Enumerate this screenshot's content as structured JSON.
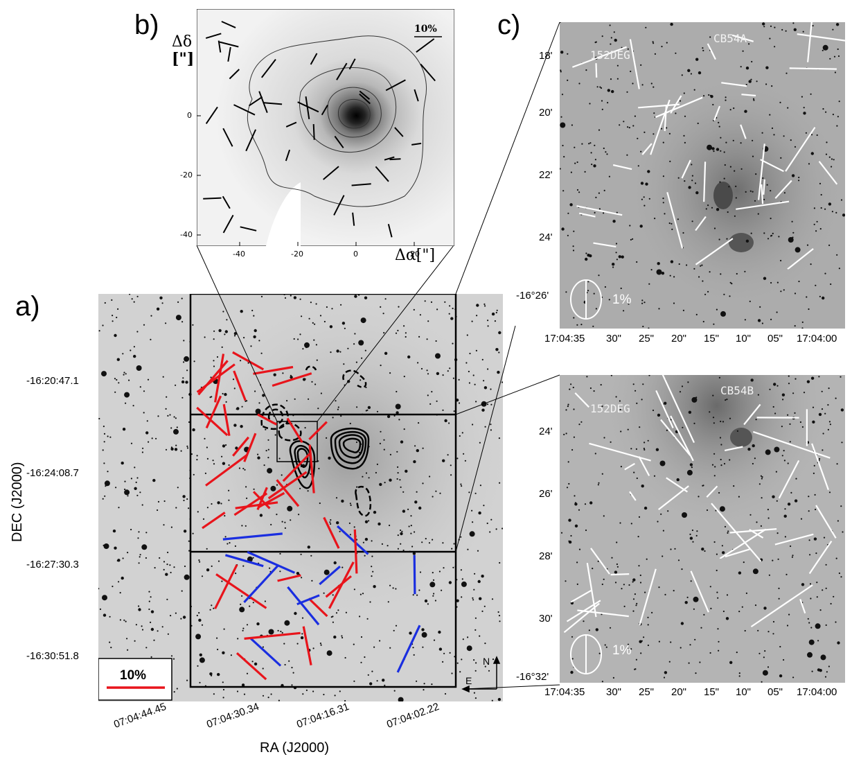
{
  "panel_a": {
    "letter": "a)",
    "dec_ticks": [
      "-16:20:47.1",
      "-16:24:08.7",
      "-16:27:30.3",
      "-16:30:51.8"
    ],
    "ra_ticks": [
      "07:04:44.45",
      "07:04:30.34",
      "07:04:16.31",
      "07:04:02.22"
    ],
    "xlabel": "RA (J2000)",
    "ylabel": "DEC (J2000)",
    "scale_label": "10%",
    "compass_n": "N",
    "compass_e": "E"
  },
  "panel_b": {
    "letter": "b)",
    "ylabel_top": "Δδ",
    "ylabel_bottom": "[\"]",
    "xlabel": "Δα[\"]",
    "scale_label": "10%",
    "x_ticks": [
      "-40",
      "-20",
      "0",
      "20"
    ],
    "y_ticks": [
      "0",
      "-20",
      "-40"
    ]
  },
  "panel_c": {
    "letter": "c)",
    "top": {
      "label_left": "152DEG",
      "label_right": "CB54A",
      "dec_ticks": [
        "18'",
        "20'",
        "22'",
        "24'",
        "-16°26'"
      ],
      "ra_ticks": [
        "17:04:35",
        "30\"",
        "25\"",
        "20\"",
        "15\"",
        "10\"",
        "05\"",
        "17:04:00"
      ],
      "scale_label": "1%"
    },
    "bottom": {
      "label_left": "152DEG",
      "label_right": "CB54B",
      "dec_ticks": [
        "24'",
        "26'",
        "28'",
        "30'",
        "-16°32'"
      ],
      "ra_ticks": [
        "17:04:35",
        "30\"",
        "25\"",
        "20\"",
        "15\"",
        "10\"",
        "05\"",
        "17:04:00"
      ],
      "scale_label": "1%"
    }
  },
  "colors": {
    "red_vectors": "#e8141b",
    "blue_vectors": "#1a2ee0",
    "white_vectors": "#ffffff"
  }
}
